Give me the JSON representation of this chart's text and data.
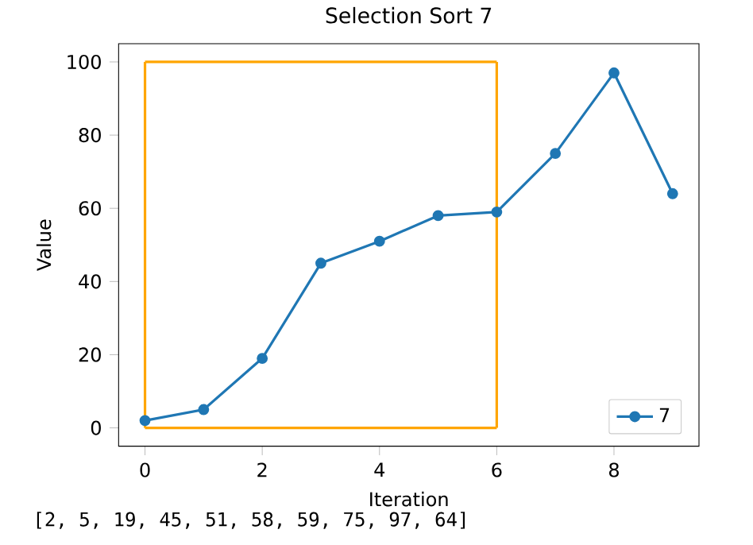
{
  "chart_data": {
    "type": "line",
    "title": "Selection Sort 7",
    "xlabel": "Iteration",
    "ylabel": "Value",
    "xlim": [
      -0.45,
      9.45
    ],
    "ylim": [
      -5,
      105
    ],
    "xticks": [
      0,
      2,
      4,
      6,
      8
    ],
    "yticks": [
      0,
      20,
      40,
      60,
      80,
      100
    ],
    "legend": "bottom right",
    "marker": "circle",
    "annotations": [
      "[2, 5, 19, 45, 51, 58, 59, 75, 97, 64]"
    ],
    "series": [
      {
        "name": "7",
        "color": "#1f77b4",
        "x": [
          0,
          1,
          2,
          3,
          4,
          5,
          6,
          7,
          8,
          9
        ],
        "values": [
          2,
          5,
          19,
          45,
          51,
          58,
          59,
          75,
          97,
          64
        ]
      },
      {
        "type": "line",
        "color": "#ffa500",
        "x": [
          0,
          6
        ],
        "values": [
          100,
          100
        ],
        "marker": "none"
      },
      {
        "type": "line",
        "color": "#ffa500",
        "x": [
          0,
          6
        ],
        "values": [
          0,
          0
        ],
        "marker": "none"
      },
      {
        "type": "line",
        "color": "#ffa500",
        "x": [
          0,
          0
        ],
        "values": [
          0,
          100
        ],
        "marker": "none"
      },
      {
        "type": "line",
        "color": "#ffa500",
        "x": [
          6,
          6
        ],
        "values": [
          0,
          100
        ],
        "marker": "none"
      }
    ]
  }
}
